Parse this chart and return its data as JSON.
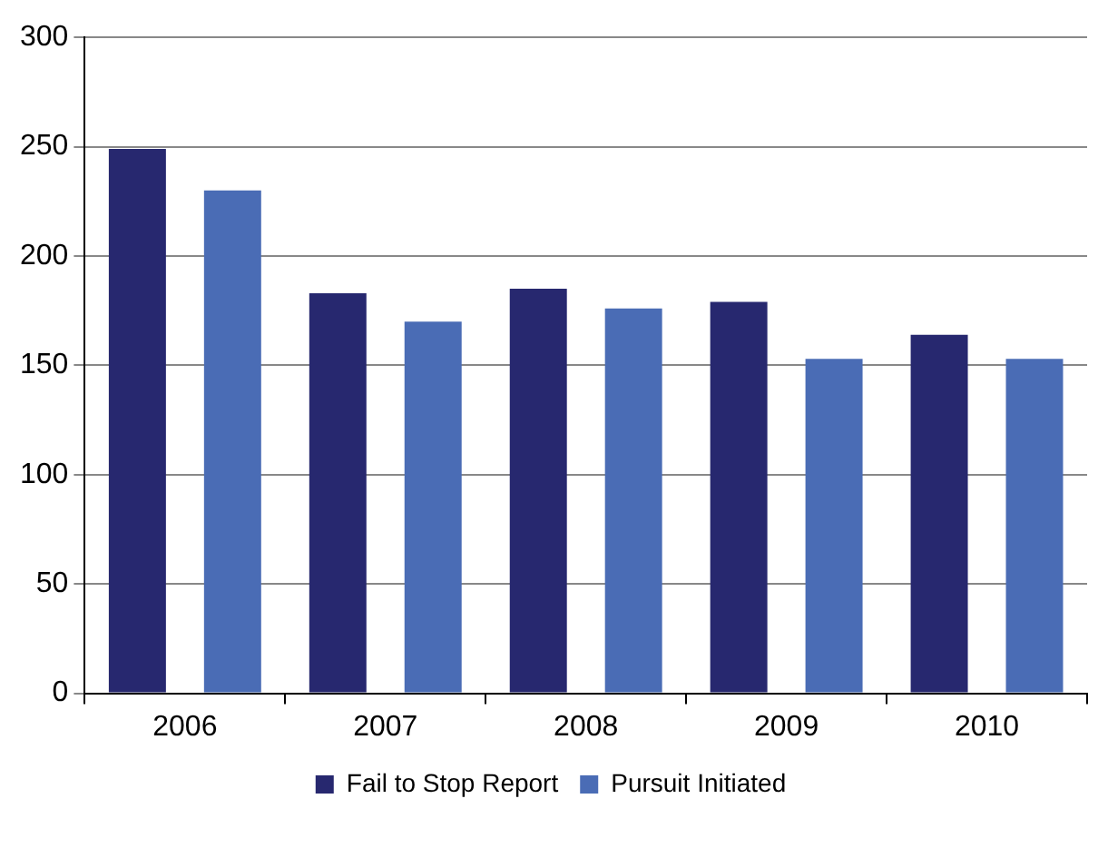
{
  "chart_data": {
    "type": "bar",
    "categories": [
      "2006",
      "2007",
      "2008",
      "2009",
      "2010"
    ],
    "series": [
      {
        "name": "Fail to Stop Report",
        "color": "#27286f",
        "values": [
          249,
          183,
          185,
          179,
          164
        ]
      },
      {
        "name": "Pursuit Initiated",
        "color": "#4a6cb5",
        "values": [
          230,
          170,
          176,
          153,
          153
        ]
      }
    ],
    "ylim": [
      0,
      300
    ],
    "yticks": [
      0,
      50,
      100,
      150,
      200,
      250,
      300
    ],
    "grid": "y",
    "legend": "bottom"
  }
}
